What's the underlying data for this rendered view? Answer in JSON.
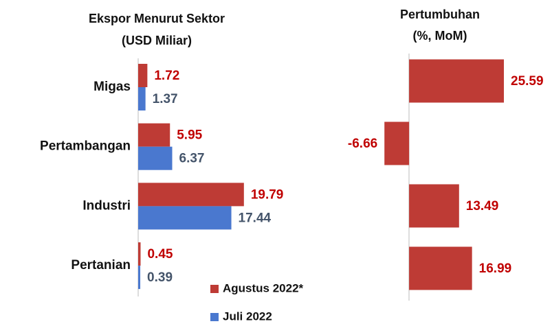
{
  "chart_data": [
    {
      "type": "bar",
      "orientation": "horizontal",
      "title": [
        "Ekspor Menurut Sektor",
        "(USD Miliar)"
      ],
      "categories": [
        "Migas",
        "Pertambangan",
        "Industri",
        "Pertanian"
      ],
      "series": [
        {
          "name": "Agustus 2022*",
          "color": "#be3b35",
          "label_color": "#c00000",
          "values": [
            1.72,
            5.95,
            19.79,
            0.45
          ]
        },
        {
          "name": "Juli 2022",
          "color": "#4a78cf",
          "label_color": "#44546a",
          "values": [
            1.37,
            6.37,
            17.44,
            0.39
          ]
        }
      ],
      "xlim": [
        0,
        22
      ]
    },
    {
      "type": "bar",
      "orientation": "horizontal",
      "title": [
        "Pertumbuhan",
        "(%, MoM)"
      ],
      "series": [
        {
          "color": "#be3b35",
          "label_color": "#c00000",
          "values": [
            25.59,
            -6.66,
            13.49,
            16.99
          ]
        }
      ],
      "xlim": [
        -8,
        28
      ]
    }
  ]
}
